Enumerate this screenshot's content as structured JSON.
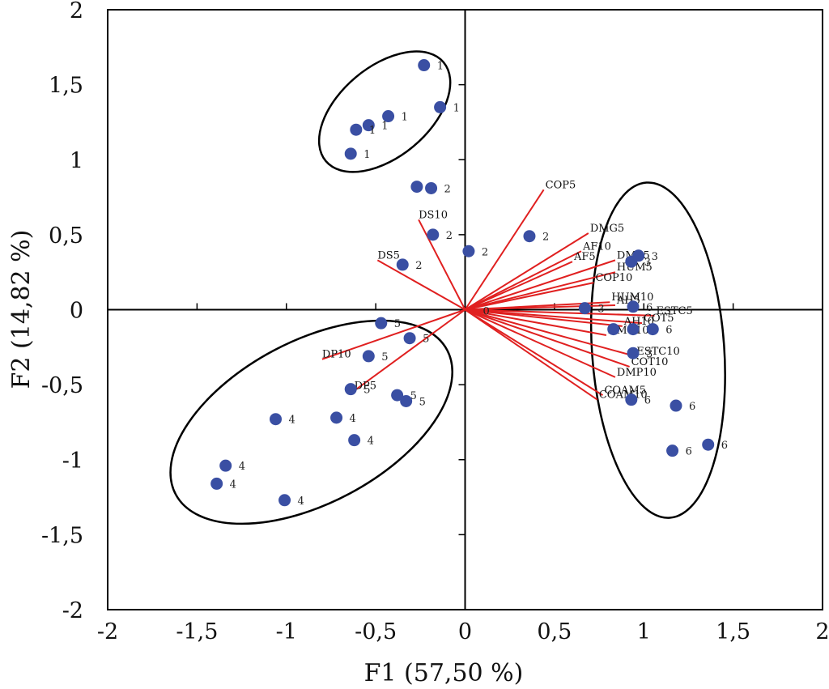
{
  "chart_data": {
    "type": "scatter",
    "subtype": "pca-biplot",
    "title": "",
    "xlabel": "F1 (57,50 %)",
    "ylabel": "F2 (14,82 %)",
    "xlim": [
      -2,
      2
    ],
    "ylim": [
      -2,
      2
    ],
    "xticks": [
      -2,
      -1.5,
      -1,
      -0.5,
      0,
      0.5,
      1,
      1.5,
      2
    ],
    "yticks": [
      -2,
      -1.5,
      -1,
      -0.5,
      0,
      0.5,
      1,
      1.5,
      2
    ],
    "xtick_labels": [
      "-2",
      "-1,5",
      "-1",
      "-0,5",
      "0",
      "0,5",
      "1",
      "1,5",
      "2"
    ],
    "ytick_labels": [
      "-2",
      "-1,5",
      "-1",
      "-0,5",
      "0",
      "0,5",
      "1",
      "1,5",
      "2"
    ],
    "grid": false,
    "origin_label": "0",
    "colors": {
      "points": "#3a4fa3",
      "vectors": "#e02020",
      "ellipses": "#000000",
      "axes": "#000000"
    },
    "points": [
      {
        "x": -0.23,
        "y": 1.63,
        "label": "1"
      },
      {
        "x": -0.14,
        "y": 1.35,
        "label": "1"
      },
      {
        "x": -0.43,
        "y": 1.29,
        "label": "1"
      },
      {
        "x": -0.54,
        "y": 1.23,
        "label": "1"
      },
      {
        "x": -0.61,
        "y": 1.2,
        "label": "1"
      },
      {
        "x": -0.64,
        "y": 1.04,
        "label": "1"
      },
      {
        "x": -0.27,
        "y": 0.82,
        "label": "2"
      },
      {
        "x": -0.19,
        "y": 0.81,
        "label": "2"
      },
      {
        "x": -0.18,
        "y": 0.5,
        "label": "2"
      },
      {
        "x": 0.02,
        "y": 0.39,
        "label": "2"
      },
      {
        "x": 0.36,
        "y": 0.49,
        "label": "2"
      },
      {
        "x": -0.35,
        "y": 0.3,
        "label": "2"
      },
      {
        "x": 0.93,
        "y": 0.32,
        "label": "3"
      },
      {
        "x": 0.97,
        "y": 0.36,
        "label": "3"
      },
      {
        "x": 0.67,
        "y": 0.01,
        "label": "3"
      },
      {
        "x": 0.94,
        "y": -0.13,
        "label": "3"
      },
      {
        "x": 0.94,
        "y": -0.29,
        "label": "3"
      },
      {
        "x": -0.47,
        "y": -0.09,
        "label": "5"
      },
      {
        "x": -0.31,
        "y": -0.19,
        "label": "5"
      },
      {
        "x": -0.54,
        "y": -0.31,
        "label": "5"
      },
      {
        "x": -0.64,
        "y": -0.53,
        "label": "5"
      },
      {
        "x": -0.38,
        "y": -0.57,
        "label": "5"
      },
      {
        "x": -0.33,
        "y": -0.61,
        "label": "5"
      },
      {
        "x": -1.06,
        "y": -0.73,
        "label": "4"
      },
      {
        "x": -0.72,
        "y": -0.72,
        "label": "4"
      },
      {
        "x": -0.62,
        "y": -0.87,
        "label": "4"
      },
      {
        "x": -1.34,
        "y": -1.04,
        "label": "4"
      },
      {
        "x": -1.39,
        "y": -1.16,
        "label": "4"
      },
      {
        "x": -1.01,
        "y": -1.27,
        "label": "4"
      },
      {
        "x": 0.94,
        "y": 0.02,
        "label": "6"
      },
      {
        "x": 0.83,
        "y": -0.13,
        "label": ""
      },
      {
        "x": 1.05,
        "y": -0.13,
        "label": "6"
      },
      {
        "x": 0.93,
        "y": -0.6,
        "label": "6"
      },
      {
        "x": 1.18,
        "y": -0.64,
        "label": "6"
      },
      {
        "x": 1.36,
        "y": -0.9,
        "label": "6"
      },
      {
        "x": 1.16,
        "y": -0.94,
        "label": "6"
      }
    ],
    "vectors": [
      {
        "name": "COP5",
        "x": 0.44,
        "y": 0.8
      },
      {
        "name": "DS10",
        "x": -0.26,
        "y": 0.6
      },
      {
        "name": "DS5",
        "x": -0.49,
        "y": 0.33
      },
      {
        "name": "DP10",
        "x": -0.8,
        "y": -0.33
      },
      {
        "name": "DP5",
        "x": -0.62,
        "y": -0.54
      },
      {
        "name": "DMG5",
        "x": 0.69,
        "y": 0.51
      },
      {
        "name": "AF10",
        "x": 0.65,
        "y": 0.39
      },
      {
        "name": "AF5",
        "x": 0.6,
        "y": 0.32
      },
      {
        "name": "DMP5",
        "x": 0.84,
        "y": 0.33
      },
      {
        "name": "HUM5",
        "x": 0.84,
        "y": 0.25
      },
      {
        "name": "COP10",
        "x": 0.72,
        "y": 0.18
      },
      {
        "name": "HUM10",
        "x": 0.81,
        "y": 0.05
      },
      {
        "name": "AH5",
        "x": 0.84,
        "y": 0.03
      },
      {
        "name": "ESTC5",
        "x": 1.06,
        "y": -0.04
      },
      {
        "name": "COT5",
        "x": 0.99,
        "y": -0.09
      },
      {
        "name": "AH10",
        "x": 0.88,
        "y": -0.11
      },
      {
        "name": "DMG10",
        "x": 0.79,
        "y": -0.17
      },
      {
        "name": "ESTC10",
        "x": 0.95,
        "y": -0.31
      },
      {
        "name": "COT10",
        "x": 0.92,
        "y": -0.38
      },
      {
        "name": "DMP10",
        "x": 0.84,
        "y": -0.45
      },
      {
        "name": "COAM5",
        "x": 0.77,
        "y": -0.57
      },
      {
        "name": "COAM10",
        "x": 0.74,
        "y": -0.6
      }
    ],
    "ellipses": [
      {
        "group": "1",
        "cx": -0.45,
        "cy": 1.32,
        "rx": 0.43,
        "ry": 0.3,
        "angle_deg": -40
      },
      {
        "group": "4-5",
        "cx": -0.86,
        "cy": -0.75,
        "rx": 0.86,
        "ry": 0.54,
        "angle_deg": -28
      },
      {
        "group": "3-6",
        "cx": 1.08,
        "cy": -0.27,
        "rx": 0.37,
        "ry": 1.12,
        "angle_deg": -4
      }
    ]
  }
}
